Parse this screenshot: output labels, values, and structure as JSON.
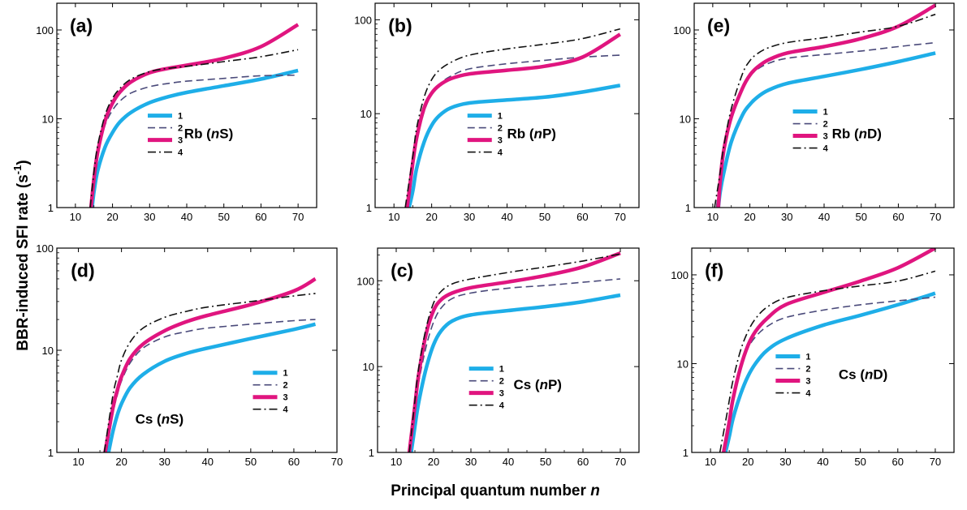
{
  "figure": {
    "ylabel_main": "BBR-induced SFI rate (s",
    "ylabel_sup": "-1",
    "ylabel_tail": ")",
    "xlabel_main": "Principal quantum number ",
    "xlabel_var": "n"
  },
  "styles": {
    "series_colors": [
      "#1eaee8",
      "#4a4a7a",
      "#e0157f",
      "#111111"
    ],
    "series_styles": [
      "solid-thick",
      "dashed",
      "solid-thick",
      "dash-dot"
    ]
  },
  "chart_data": [
    {
      "type": "line",
      "scale": "log-y",
      "panel": "(a)",
      "atom": "Rb",
      "state_pre": "n",
      "state_post": "S",
      "xlim": [
        5,
        75
      ],
      "ylim": [
        1,
        200
      ],
      "xticks": [
        10,
        20,
        30,
        40,
        50,
        60,
        70
      ],
      "yticks": [
        1,
        10,
        100
      ],
      "legend": [
        "1",
        "2",
        "3",
        "4"
      ],
      "series": [
        {
          "x": [
            14.5,
            15,
            16,
            18,
            20,
            22,
            25,
            30,
            35,
            40,
            50,
            60,
            70
          ],
          "values": [
            1,
            1.5,
            2.6,
            4.8,
            7,
            9.2,
            11.8,
            15.2,
            17.7,
            19.8,
            23.5,
            28,
            35
          ]
        },
        {
          "x": [
            14,
            15,
            16,
            18,
            20,
            22,
            25,
            30,
            35,
            40,
            50,
            60,
            70
          ],
          "values": [
            1,
            2.2,
            4.2,
            8.5,
            12.5,
            15.8,
            19.5,
            23,
            25,
            26.5,
            28.5,
            30.5,
            31
          ]
        },
        {
          "x": [
            14.2,
            15,
            16,
            18,
            20,
            22,
            25,
            30,
            35,
            40,
            50,
            60,
            70
          ],
          "values": [
            1,
            2.1,
            4.2,
            9.5,
            15,
            20,
            26,
            33,
            37,
            40,
            48,
            65,
            115
          ]
        },
        {
          "x": [
            14,
            15,
            16,
            18,
            20,
            22,
            25,
            30,
            35,
            40,
            50,
            60,
            70
          ],
          "values": [
            1,
            2.5,
            5,
            11,
            17,
            22,
            28,
            34,
            37,
            39,
            44,
            50,
            60
          ]
        }
      ]
    },
    {
      "type": "line",
      "scale": "log-y",
      "panel": "(b)",
      "atom": "Rb",
      "state_pre": "n",
      "state_post": "P",
      "xlim": [
        5,
        75
      ],
      "ylim": [
        1,
        150
      ],
      "xticks": [
        10,
        20,
        30,
        40,
        50,
        60,
        70
      ],
      "yticks": [
        1,
        10,
        100
      ],
      "legend": [
        "1",
        "2",
        "3",
        "4"
      ],
      "series": [
        {
          "x": [
            14,
            15,
            16,
            18,
            20,
            22,
            25,
            30,
            40,
            50,
            60,
            70
          ],
          "values": [
            1,
            1.5,
            2.6,
            5,
            7.5,
            9.5,
            11.5,
            13,
            14,
            15,
            17,
            20
          ]
        },
        {
          "x": [
            13.5,
            15,
            16,
            18,
            20,
            22,
            25,
            30,
            40,
            50,
            60,
            70
          ],
          "values": [
            1,
            2.8,
            5,
            10.5,
            16,
            20.5,
            25,
            30,
            34,
            37,
            40,
            42
          ]
        },
        {
          "x": [
            13.5,
            15,
            16,
            18,
            20,
            22,
            25,
            30,
            40,
            50,
            60,
            70
          ],
          "values": [
            1,
            3,
            5.5,
            11.5,
            16.5,
            20,
            23.5,
            26.5,
            29,
            32,
            40,
            70
          ]
        },
        {
          "x": [
            13,
            15,
            16,
            18,
            20,
            22,
            25,
            30,
            40,
            50,
            60,
            70
          ],
          "values": [
            1,
            3.5,
            7,
            15,
            23,
            29,
            35,
            42,
            49,
            55,
            63,
            80
          ]
        }
      ]
    },
    {
      "type": "line",
      "scale": "log-y",
      "panel": "(e)",
      "atom": "Rb",
      "state_pre": "n",
      "state_post": "D",
      "xlim": [
        5,
        75
      ],
      "ylim": [
        1,
        200
      ],
      "xticks": [
        10,
        20,
        30,
        40,
        50,
        60,
        70
      ],
      "yticks": [
        1,
        10,
        100
      ],
      "legend": [
        "1",
        "2",
        "3",
        "4"
      ],
      "series": [
        {
          "x": [
            11.5,
            12,
            13,
            15,
            18,
            20,
            22,
            25,
            30,
            40,
            50,
            60,
            70
          ],
          "values": [
            1,
            1.5,
            2.5,
            5.5,
            11,
            14.5,
            17.5,
            21,
            25,
            30,
            36,
            44,
            55
          ]
        },
        {
          "x": [
            11,
            12,
            13,
            15,
            18,
            20,
            22,
            25,
            30,
            40,
            50,
            60,
            70
          ],
          "values": [
            1,
            2.2,
            4.5,
            10,
            22,
            30,
            36,
            42,
            48,
            53,
            58,
            65,
            72
          ]
        },
        {
          "x": [
            11.5,
            12,
            13,
            15,
            18,
            20,
            22,
            25,
            30,
            40,
            50,
            60,
            70
          ],
          "values": [
            1,
            2,
            4.5,
            10.5,
            22,
            31,
            38,
            46,
            55,
            65,
            80,
            110,
            190
          ]
        },
        {
          "x": [
            10.5,
            12,
            13,
            15,
            18,
            20,
            22,
            25,
            30,
            40,
            50,
            60,
            70
          ],
          "values": [
            1,
            2.5,
            5,
            13,
            32,
            45,
            54,
            63,
            72,
            82,
            95,
            110,
            150
          ]
        }
      ]
    },
    {
      "type": "line",
      "scale": "log-y",
      "panel": "(d)",
      "atom": "Cs",
      "state_pre": "n",
      "state_post": "S",
      "xlim": [
        5,
        70
      ],
      "ylim": [
        1,
        100
      ],
      "xticks": [
        10,
        20,
        30,
        40,
        50,
        60,
        70
      ],
      "yticks": [
        1,
        10,
        100
      ],
      "legend": [
        "1",
        "2",
        "3",
        "4"
      ],
      "series": [
        {
          "x": [
            17,
            18,
            19,
            20,
            22,
            25,
            30,
            35,
            40,
            50,
            60,
            65
          ],
          "values": [
            1,
            1.6,
            2.3,
            3,
            4.3,
            5.8,
            7.8,
            9.3,
            10.5,
            13,
            16,
            18
          ]
        },
        {
          "x": [
            16.5,
            18,
            19,
            20,
            22,
            25,
            30,
            35,
            40,
            50,
            60,
            65
          ],
          "values": [
            1,
            2.4,
            3.6,
            5,
            7.5,
            10.5,
            13.5,
            15.2,
            16.5,
            18,
            19.5,
            20
          ]
        },
        {
          "x": [
            16.2,
            18,
            19,
            20,
            22,
            25,
            30,
            35,
            40,
            50,
            60,
            65
          ],
          "values": [
            1,
            2.7,
            4,
            5.5,
            8.3,
            11.5,
            15.5,
            19,
            22,
            28,
            38,
            50
          ]
        },
        {
          "x": [
            16,
            18,
            19,
            20,
            22,
            25,
            30,
            35,
            40,
            50,
            60,
            65
          ],
          "values": [
            1,
            3.6,
            5.5,
            8,
            12,
            16.5,
            21,
            24,
            26.5,
            30,
            34,
            36
          ]
        }
      ]
    },
    {
      "type": "line",
      "scale": "log-y",
      "panel": "(c)",
      "atom": "Cs",
      "state_pre": "n",
      "state_post": "P",
      "xlim": [
        5,
        75
      ],
      "ylim": [
        1,
        240
      ],
      "xticks": [
        10,
        20,
        30,
        40,
        50,
        60,
        70
      ],
      "yticks": [
        1,
        10,
        100
      ],
      "legend": [
        "1",
        "2",
        "3",
        "4"
      ],
      "series": [
        {
          "x": [
            14,
            15,
            16,
            18,
            20,
            22,
            25,
            30,
            40,
            50,
            60,
            70
          ],
          "values": [
            1,
            2,
            3.8,
            9.5,
            18,
            26,
            34,
            40,
            45,
            50,
            57,
            68
          ]
        },
        {
          "x": [
            13.5,
            15,
            16,
            18,
            20,
            22,
            25,
            30,
            40,
            50,
            60,
            70
          ],
          "values": [
            1,
            3,
            6.5,
            17,
            33,
            48,
            62,
            72,
            82,
            88,
            96,
            105
          ]
        },
        {
          "x": [
            13.5,
            15,
            16,
            18,
            20,
            22,
            25,
            30,
            40,
            50,
            60,
            70
          ],
          "values": [
            1,
            3.5,
            8,
            24,
            45,
            60,
            72,
            83,
            97,
            115,
            145,
            210
          ]
        },
        {
          "x": [
            13.5,
            15,
            16,
            18,
            20,
            22,
            25,
            30,
            40,
            50,
            60,
            70
          ],
          "values": [
            1,
            4,
            9.5,
            28,
            55,
            75,
            92,
            105,
            125,
            145,
            170,
            205
          ]
        }
      ]
    },
    {
      "type": "line",
      "scale": "log-y",
      "panel": "(f)",
      "atom": "Cs",
      "state_pre": "n",
      "state_post": "D",
      "xlim": [
        5,
        75
      ],
      "ylim": [
        1,
        200
      ],
      "xticks": [
        10,
        20,
        30,
        40,
        50,
        60,
        70
      ],
      "yticks": [
        1,
        10,
        100
      ],
      "legend": [
        "1",
        "2",
        "3",
        "4"
      ],
      "series": [
        {
          "x": [
            14,
            15,
            16,
            18,
            20,
            22,
            25,
            30,
            40,
            50,
            60,
            70
          ],
          "values": [
            1,
            1.5,
            2.4,
            4.5,
            7.2,
            10,
            14,
            19,
            27,
            35,
            46,
            62
          ]
        },
        {
          "x": [
            13.5,
            15,
            16,
            18,
            20,
            22,
            25,
            30,
            40,
            50,
            60,
            70
          ],
          "values": [
            1,
            2.5,
            4.5,
            9.5,
            15,
            20,
            26,
            33,
            40,
            46,
            51,
            56
          ]
        },
        {
          "x": [
            13.5,
            15,
            16,
            18,
            20,
            22,
            25,
            30,
            40,
            50,
            60,
            70
          ],
          "values": [
            1,
            2.2,
            4,
            9,
            16,
            23,
            32,
            46,
            63,
            85,
            120,
            200
          ]
        },
        {
          "x": [
            12.5,
            14,
            15,
            16,
            18,
            20,
            22,
            25,
            30,
            40,
            50,
            60,
            70
          ],
          "values": [
            1,
            2.2,
            3.8,
            6.5,
            14,
            23,
            32,
            43,
            55,
            66,
            75,
            85,
            110
          ]
        }
      ]
    }
  ]
}
